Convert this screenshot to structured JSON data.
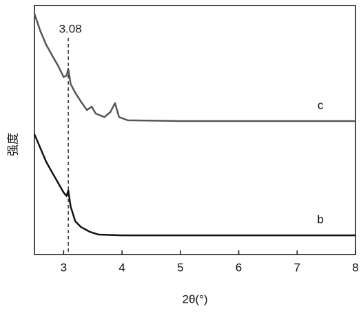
{
  "chart_data": {
    "type": "line",
    "xlabel": "2θ(°)",
    "ylabel": "强度",
    "xlim": [
      2.5,
      8
    ],
    "xticks": [
      3,
      4,
      5,
      6,
      7,
      8
    ],
    "ylim": [
      0,
      100
    ],
    "annotations": [
      {
        "text": "3.08",
        "x": 3.08
      }
    ],
    "series": [
      {
        "name": "c",
        "color": "#555555",
        "x": [
          2.5,
          2.6,
          2.7,
          2.8,
          2.9,
          3.0,
          3.05,
          3.08,
          3.12,
          3.2,
          3.3,
          3.4,
          3.48,
          3.55,
          3.7,
          3.8,
          3.88,
          3.95,
          4.1,
          5,
          6,
          7,
          8
        ],
        "values": [
          96.7,
          89.8,
          84.3,
          80.1,
          76,
          71.3,
          71.8,
          74.6,
          68.5,
          64.9,
          61.3,
          58,
          59.4,
          56.6,
          55.2,
          57.2,
          60.8,
          55.2,
          53.9,
          53.6,
          53.6,
          53.6,
          53.6
        ]
      },
      {
        "name": "b",
        "color": "#111111",
        "x": [
          2.5,
          2.6,
          2.7,
          2.8,
          2.9,
          3.0,
          3.05,
          3.08,
          3.12,
          3.2,
          3.3,
          3.45,
          3.6,
          4,
          5,
          6,
          7,
          8
        ],
        "values": [
          48.3,
          42.8,
          37.3,
          33.1,
          29,
          24.9,
          23.5,
          25.7,
          19.3,
          13.3,
          11,
          9.1,
          8,
          7.7,
          7.7,
          7.7,
          7.7,
          7.7
        ]
      }
    ]
  }
}
